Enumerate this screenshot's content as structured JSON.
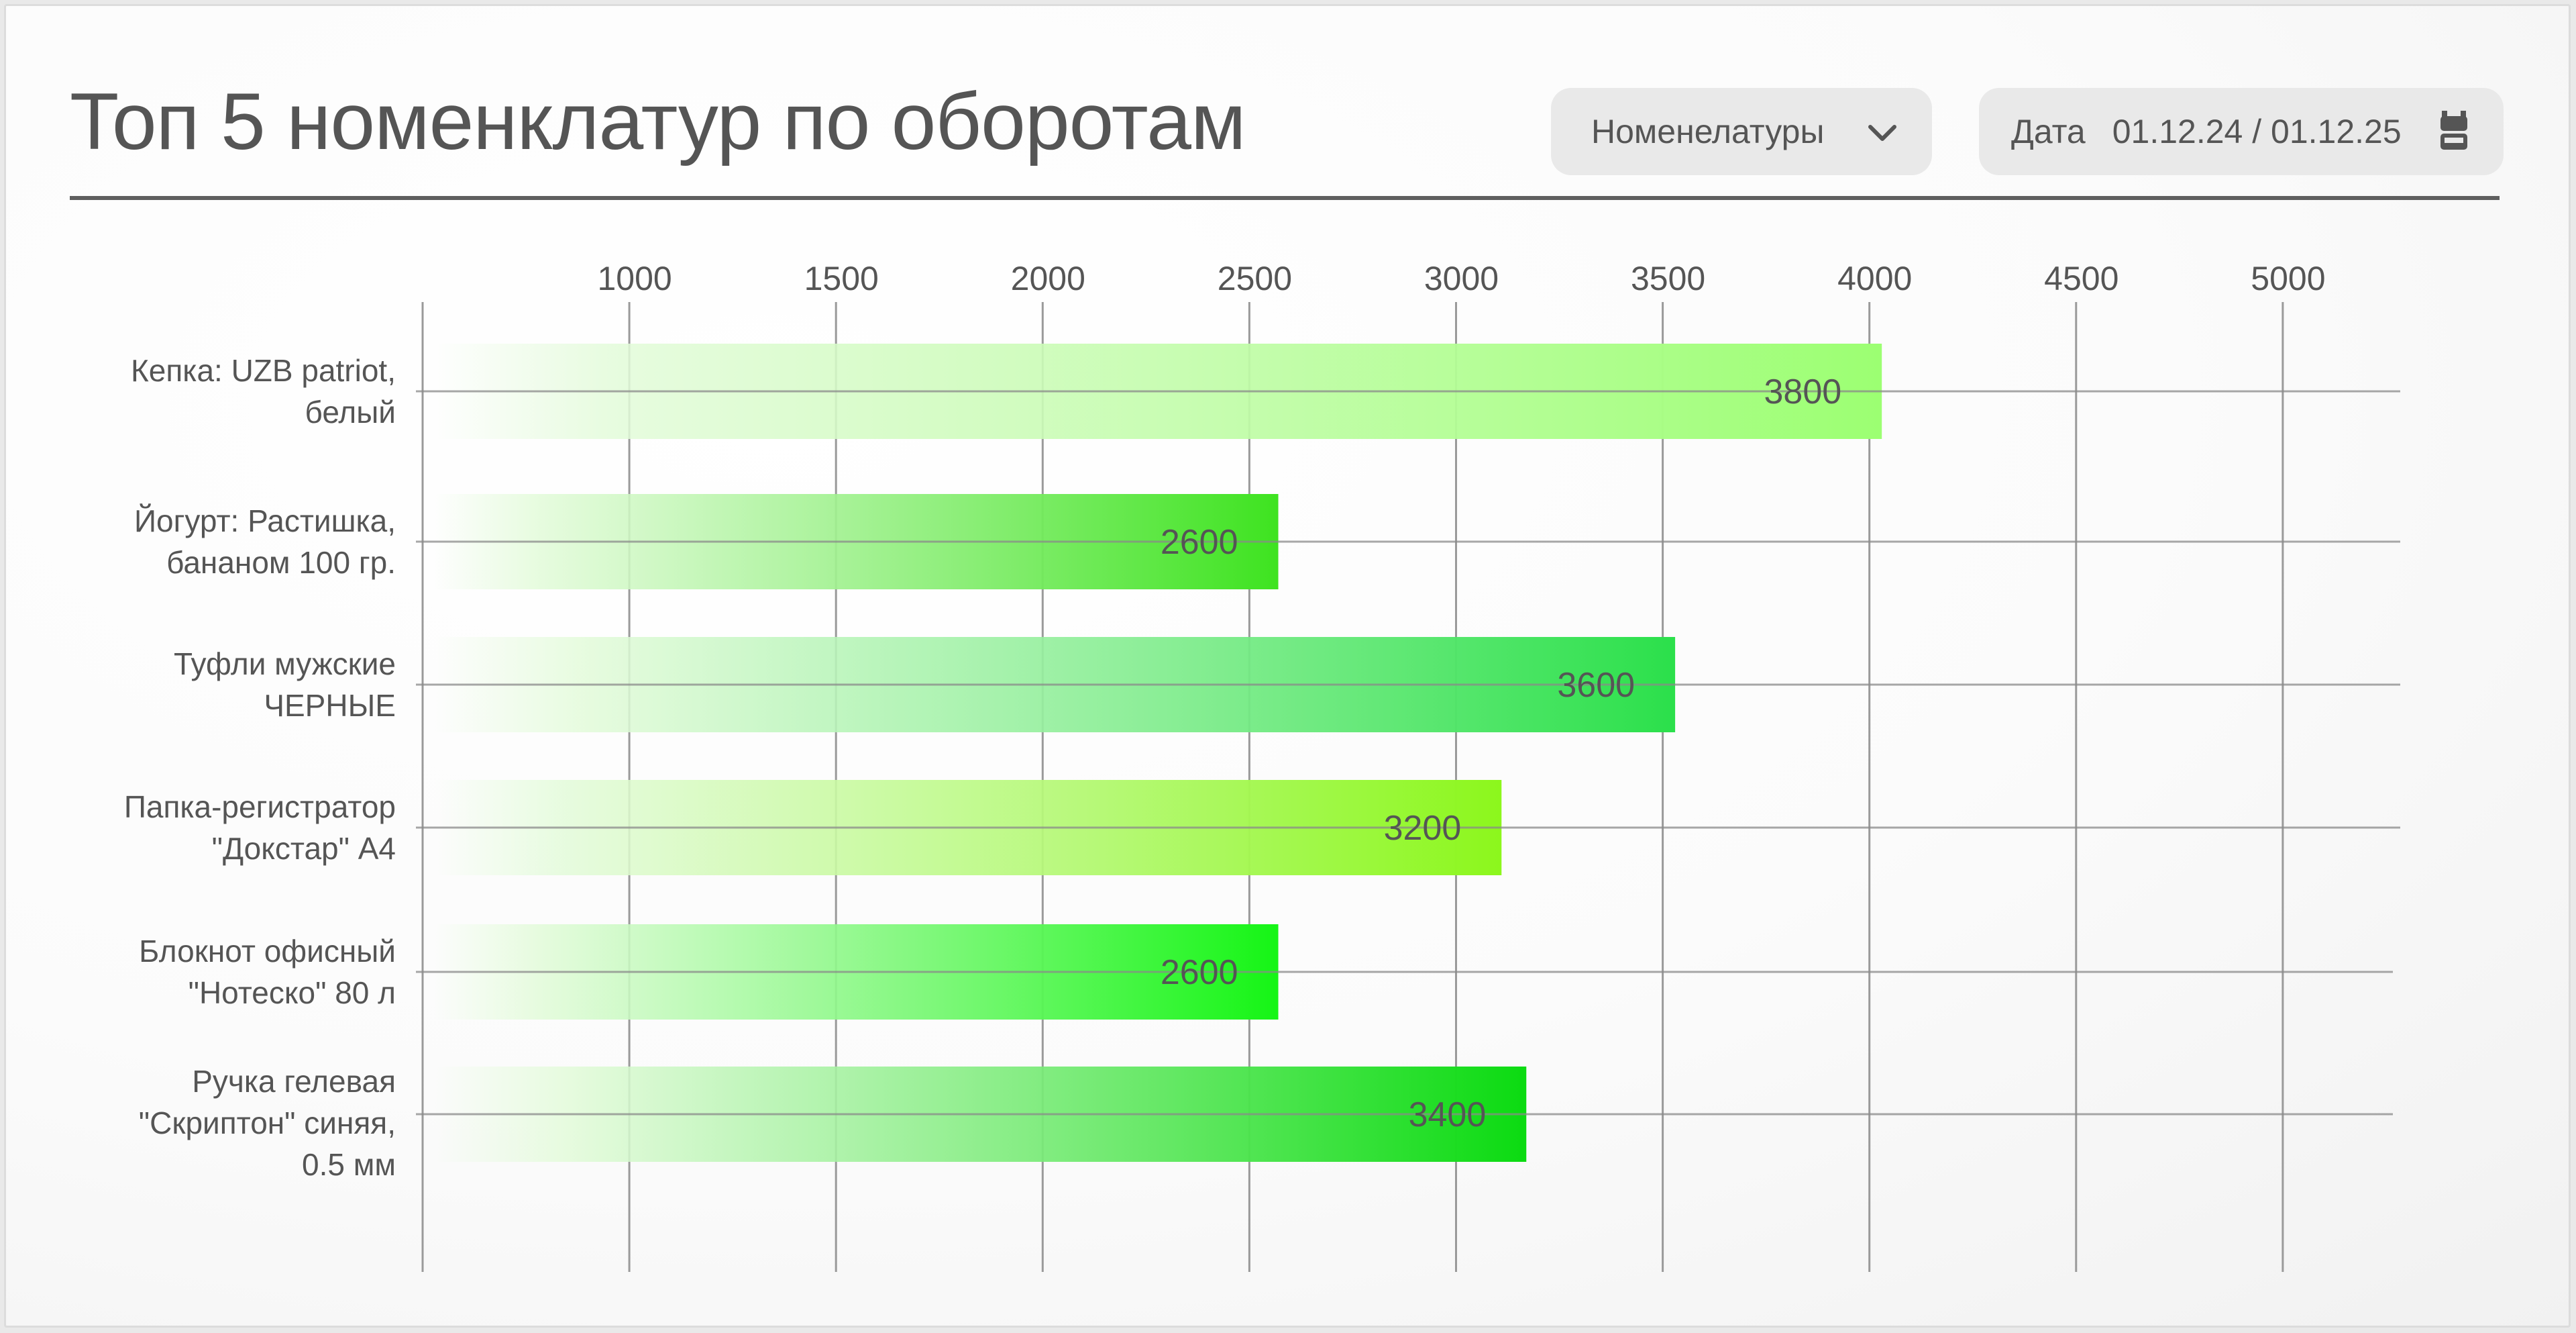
{
  "header": {
    "title": "Топ 5 номенклатур по оборотам",
    "nomenclature_dropdown": {
      "label": "Номенелатуры",
      "icon": "chevron-down-icon"
    },
    "date_filter": {
      "label": "Дата",
      "value": "01.12.24 / 01.12.25",
      "icon": "calendar-icon"
    }
  },
  "chart_data": {
    "type": "bar",
    "orientation": "horizontal",
    "categories": [
      [
        "Кепка: UZB patriot,",
        "белый"
      ],
      [
        "Йогурт: Растишка,",
        "бананом 100 гр."
      ],
      [
        "Туфли мужские",
        "ЧЕРНЫЕ"
      ],
      [
        "Папка-регистратор",
        "\"Докстар\" А4"
      ],
      [
        "Блокнот офисный",
        "\"Нотеско\" 80 л"
      ],
      [
        "Ручка гелевая",
        "\"Скриптон\" синяя,",
        "0.5 мм"
      ]
    ],
    "values": [
      3800,
      2600,
      3600,
      3200,
      2600,
      3400
    ],
    "value_labels": [
      "3800",
      "2600",
      "3600",
      "3200",
      "2600",
      "3400"
    ],
    "bar_ends": [
      4030,
      2570,
      3530,
      3110,
      2570,
      3170
    ],
    "x_ticks": [
      1000,
      1500,
      2000,
      2500,
      3000,
      3500,
      4000,
      4500,
      5000
    ],
    "xlim": [
      500,
      5300
    ],
    "grid": true,
    "colors": {
      "bar_starts": [
        "#e3fbda",
        "#e3fbda",
        "#e3fbda",
        "#e3fbda",
        "#e3fbda",
        "#e3fbda"
      ],
      "bar_ends": [
        "#9cff72",
        "#3ee320",
        "#2be04b",
        "#8cf71c",
        "#15f515",
        "#0bdb11"
      ],
      "label_text": "#555555",
      "grid": "#9a9a9a"
    }
  }
}
